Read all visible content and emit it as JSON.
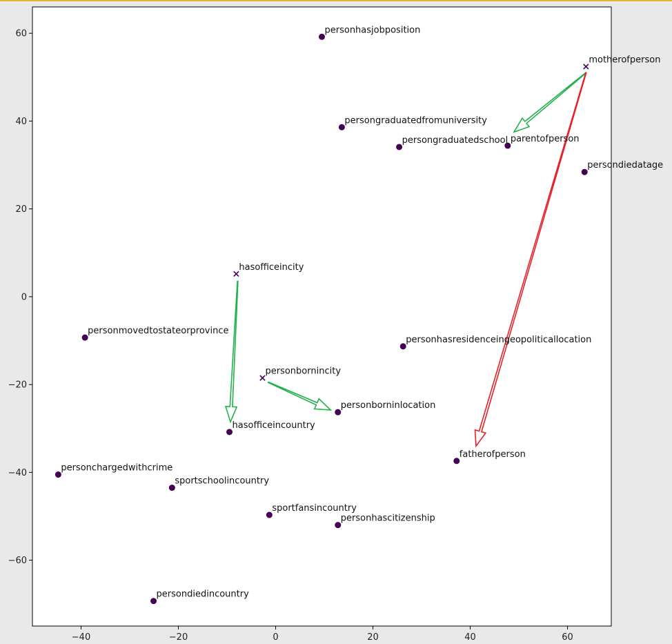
{
  "chart_data": {
    "type": "scatter",
    "title": "",
    "xlabel": "",
    "ylabel": "",
    "xlim": [
      -50,
      69
    ],
    "ylim": [
      -75,
      66
    ],
    "xticks": [
      -40,
      -20,
      0,
      20,
      40,
      60
    ],
    "yticks": [
      60,
      40,
      20,
      0,
      -20,
      -40,
      -60
    ],
    "xtick_labels": [
      "−40",
      "−20",
      "0",
      "20",
      "40",
      "60"
    ],
    "ytick_labels": [
      "60",
      "40",
      "20",
      "0",
      "−20",
      "−40",
      "−60"
    ],
    "grid": false,
    "colors": {
      "marker": "#440154",
      "green_arrow": "#22b14c",
      "red_arrow": "#e8202a",
      "background": "#e9e9e9",
      "plot_bg": "#ffffff"
    },
    "points": [
      {
        "label": "personhasjobposition",
        "x": 9.5,
        "y": 59.2,
        "marker": "o"
      },
      {
        "label": "motherofperson",
        "x": 63.8,
        "y": 52.4,
        "marker": "x"
      },
      {
        "label": "persongraduatedfromuniversity",
        "x": 13.6,
        "y": 38.6,
        "marker": "o"
      },
      {
        "label": "persongraduatedschool",
        "x": 25.4,
        "y": 34.1,
        "marker": "o"
      },
      {
        "label": "parentofperson",
        "x": 47.7,
        "y": 34.4,
        "marker": "o"
      },
      {
        "label": "persondiedatage",
        "x": 63.5,
        "y": 28.4,
        "marker": "o"
      },
      {
        "label": "hasofficeincity",
        "x": -8.1,
        "y": 5.2,
        "marker": "x"
      },
      {
        "label": "personmovedtostateorprovince",
        "x": -39.2,
        "y": -9.3,
        "marker": "o"
      },
      {
        "label": "personhasresidenceingeopoliticallocation",
        "x": 26.2,
        "y": -11.3,
        "marker": "o"
      },
      {
        "label": "personbornincity",
        "x": -2.7,
        "y": -18.5,
        "marker": "x"
      },
      {
        "label": "personborninlocation",
        "x": 12.8,
        "y": -26.3,
        "marker": "o"
      },
      {
        "label": "hasofficeincountry",
        "x": -9.5,
        "y": -30.8,
        "marker": "o"
      },
      {
        "label": "fatherofperson",
        "x": 37.2,
        "y": -37.4,
        "marker": "o"
      },
      {
        "label": "personchargedwithcrime",
        "x": -44.7,
        "y": -40.5,
        "marker": "o"
      },
      {
        "label": "sportschoolincountry",
        "x": -21.3,
        "y": -43.5,
        "marker": "o"
      },
      {
        "label": "sportfansincountry",
        "x": -1.3,
        "y": -49.7,
        "marker": "o"
      },
      {
        "label": "personhascitizenship",
        "x": 12.8,
        "y": -52.0,
        "marker": "o"
      },
      {
        "label": "persondiedincountry",
        "x": -25.1,
        "y": -69.3,
        "marker": "o"
      }
    ],
    "arrows": [
      {
        "from": [
          63.8,
          51.0
        ],
        "to": [
          49.0,
          37.5
        ],
        "color": "green"
      },
      {
        "from": [
          63.8,
          51.0
        ],
        "to": [
          41.2,
          -34.0
        ],
        "color": "red"
      },
      {
        "from": [
          -7.8,
          3.5
        ],
        "to": [
          -9.3,
          -28.5
        ],
        "color": "green"
      },
      {
        "from": [
          -1.5,
          -19.5
        ],
        "to": [
          11.3,
          -25.8
        ],
        "color": "green"
      }
    ]
  }
}
